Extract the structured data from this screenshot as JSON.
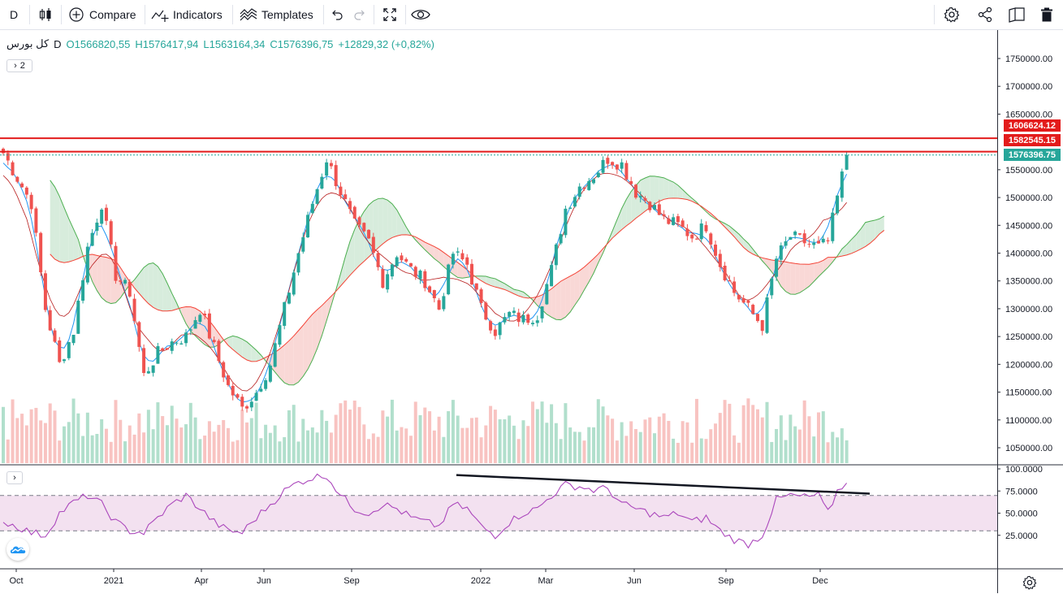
{
  "toolbar": {
    "interval": "D",
    "compare_label": "Compare",
    "indicators_label": "Indicators",
    "templates_label": "Templates"
  },
  "legend": {
    "symbol": "کل بورس",
    "interval": "D",
    "open": "O1566820,55",
    "high": "H1576417,94",
    "low": "L1563164,34",
    "close": "C1576396,75",
    "change": "+12829,32 (+0,82%)",
    "collapsed_count": "2"
  },
  "price_tags": {
    "resistance_high": "1606624.12",
    "resistance_low": "1582545.15",
    "last_price": "1576396.75"
  },
  "colors": {
    "up": "#26a69a",
    "down": "#ef5350",
    "resistance_line": "#e31b1b",
    "last_price_tag": "#26a69a",
    "rsi_line": "#ab47bc",
    "rsi_band": "#f3e1f0",
    "cloud_bull": "#d7ecdc",
    "cloud_bear": "#f9d8d6"
  },
  "chart_data": [
    {
      "type": "candlestick",
      "title": "کل بورس, D",
      "y_ticks": [
        "1750000.00",
        "1700000.00",
        "1650000.00",
        "1550000.00",
        "1500000.00",
        "1450000.00",
        "1400000.00",
        "1350000.00",
        "1300000.00",
        "1250000.00",
        "1200000.00",
        "1150000.00",
        "1100000.00",
        "1050000.00"
      ],
      "ylim": [
        1030000,
        1785000
      ],
      "x_ticks": [
        "Oct",
        "2021",
        "Apr",
        "Jun",
        "Sep",
        "2022",
        "Mar",
        "Jun",
        "Sep",
        "Dec"
      ],
      "horizontal_lines": [
        1606624.12,
        1582545.15
      ],
      "last_close": 1576396.75,
      "indicators": [
        "Ichimoku Cloud",
        "Volume"
      ],
      "approx_close_path": [
        [
          0,
          1580000
        ],
        [
          6,
          1490000
        ],
        [
          9,
          1300000
        ],
        [
          12,
          1200000
        ],
        [
          15,
          1260000
        ],
        [
          18,
          1410000
        ],
        [
          21,
          1490000
        ],
        [
          24,
          1360000
        ],
        [
          27,
          1330000
        ],
        [
          30,
          1180000
        ],
        [
          33,
          1220000
        ],
        [
          36,
          1240000
        ],
        [
          39,
          1250000
        ],
        [
          42,
          1300000
        ],
        [
          45,
          1230000
        ],
        [
          48,
          1160000
        ],
        [
          51,
          1120000
        ],
        [
          54,
          1150000
        ],
        [
          57,
          1200000
        ],
        [
          60,
          1300000
        ],
        [
          63,
          1400000
        ],
        [
          66,
          1490000
        ],
        [
          69,
          1570000
        ],
        [
          72,
          1510000
        ],
        [
          75,
          1450000
        ],
        [
          78,
          1420000
        ],
        [
          81,
          1350000
        ],
        [
          84,
          1400000
        ],
        [
          87,
          1370000
        ],
        [
          90,
          1350000
        ],
        [
          93,
          1300000
        ],
        [
          96,
          1400000
        ],
        [
          99,
          1380000
        ],
        [
          102,
          1300000
        ],
        [
          105,
          1260000
        ],
        [
          108,
          1290000
        ],
        [
          111,
          1280000
        ],
        [
          114,
          1290000
        ],
        [
          117,
          1370000
        ],
        [
          120,
          1480000
        ],
        [
          123,
          1520000
        ],
        [
          126,
          1540000
        ],
        [
          129,
          1570000
        ],
        [
          132,
          1560000
        ],
        [
          135,
          1510000
        ],
        [
          138,
          1490000
        ],
        [
          141,
          1460000
        ],
        [
          144,
          1450000
        ],
        [
          147,
          1430000
        ],
        [
          150,
          1450000
        ],
        [
          153,
          1380000
        ],
        [
          156,
          1330000
        ],
        [
          159,
          1300000
        ],
        [
          162,
          1270000
        ],
        [
          165,
          1390000
        ],
        [
          168,
          1430000
        ],
        [
          171,
          1420000
        ],
        [
          174,
          1410000
        ],
        [
          176,
          1420000
        ],
        [
          178,
          1500000
        ],
        [
          180,
          1576396.75
        ]
      ]
    },
    {
      "type": "line",
      "title": "RSI",
      "y_ticks": [
        "100.0000",
        "75.0000",
        "50.0000",
        "25.0000"
      ],
      "ylim": [
        0,
        100
      ],
      "band": [
        30,
        70
      ],
      "trendline": [
        [
          96.7,
          93
        ],
        [
          1071,
          72
        ]
      ],
      "approx_values": [
        [
          0,
          40
        ],
        [
          3,
          35
        ],
        [
          6,
          28
        ],
        [
          9,
          25
        ],
        [
          12,
          50
        ],
        [
          15,
          62
        ],
        [
          18,
          70
        ],
        [
          21,
          60
        ],
        [
          24,
          40
        ],
        [
          27,
          30
        ],
        [
          30,
          28
        ],
        [
          33,
          45
        ],
        [
          36,
          60
        ],
        [
          39,
          70
        ],
        [
          42,
          55
        ],
        [
          45,
          40
        ],
        [
          48,
          30
        ],
        [
          51,
          28
        ],
        [
          54,
          45
        ],
        [
          57,
          60
        ],
        [
          60,
          75
        ],
        [
          63,
          85
        ],
        [
          66,
          90
        ],
        [
          69,
          93
        ],
        [
          72,
          70
        ],
        [
          75,
          55
        ],
        [
          78,
          50
        ],
        [
          81,
          60
        ],
        [
          84,
          55
        ],
        [
          87,
          45
        ],
        [
          90,
          40
        ],
        [
          93,
          35
        ],
        [
          96,
          60
        ],
        [
          99,
          55
        ],
        [
          102,
          35
        ],
        [
          105,
          25
        ],
        [
          108,
          40
        ],
        [
          111,
          50
        ],
        [
          114,
          55
        ],
        [
          117,
          70
        ],
        [
          120,
          82
        ],
        [
          123,
          80
        ],
        [
          126,
          76
        ],
        [
          129,
          78
        ],
        [
          132,
          60
        ],
        [
          135,
          55
        ],
        [
          138,
          50
        ],
        [
          141,
          45
        ],
        [
          144,
          50
        ],
        [
          147,
          40
        ],
        [
          150,
          45
        ],
        [
          153,
          30
        ],
        [
          156,
          20
        ],
        [
          159,
          15
        ],
        [
          162,
          25
        ],
        [
          165,
          65
        ],
        [
          168,
          70
        ],
        [
          171,
          68
        ],
        [
          174,
          70
        ],
        [
          176,
          50
        ],
        [
          178,
          75
        ],
        [
          180,
          84
        ]
      ]
    }
  ]
}
